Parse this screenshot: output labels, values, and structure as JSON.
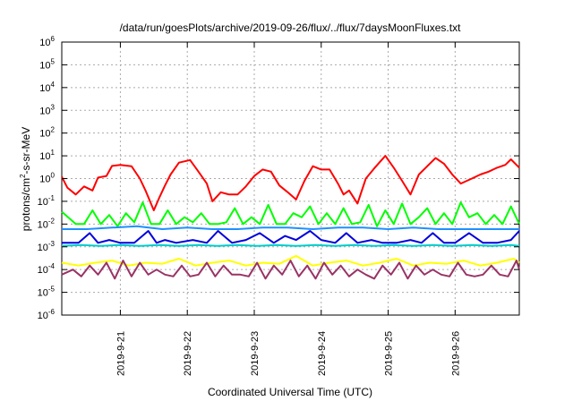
{
  "chart_data": {
    "type": "line",
    "title": "/data/run/goesPlots/archive/2019-09-26/flux/../flux/7daysMoonFluxes.txt",
    "xlabel": "Coordinated Universal Time (UTC)",
    "ylabel": "protons/cm²-s-sr-MeV",
    "ylabel_parts": {
      "pre": "protons/cm",
      "sup": "2",
      "post": "-s-sr-MeV"
    },
    "y_scale": "log",
    "ylim": [
      1e-06,
      1000000.0
    ],
    "y_ticks": [
      {
        "value": 1e-06,
        "base": "10",
        "exp": "-6"
      },
      {
        "value": 1e-05,
        "base": "10",
        "exp": "-5"
      },
      {
        "value": 0.0001,
        "base": "10",
        "exp": "-4"
      },
      {
        "value": 0.001,
        "base": "10",
        "exp": "-3"
      },
      {
        "value": 0.01,
        "base": "10",
        "exp": "-2"
      },
      {
        "value": 0.1,
        "base": "10",
        "exp": "-1"
      },
      {
        "value": 1.0,
        "base": "10",
        "exp": "0"
      },
      {
        "value": 10.0,
        "base": "10",
        "exp": "1"
      },
      {
        "value": 100.0,
        "base": "10",
        "exp": "2"
      },
      {
        "value": 1000.0,
        "base": "10",
        "exp": "3"
      },
      {
        "value": 10000.0,
        "base": "10",
        "exp": "4"
      },
      {
        "value": 100000.0,
        "base": "10",
        "exp": "5"
      },
      {
        "value": 1000000.0,
        "base": "10",
        "exp": "6"
      }
    ],
    "xlim": [
      "2019-09-20T03:00",
      "2019-09-26T23:00"
    ],
    "x_ticks": [
      {
        "label": "2019-9-21",
        "t": "2019-09-21T00:00"
      },
      {
        "label": "2019-9-22",
        "t": "2019-09-22T00:00"
      },
      {
        "label": "2019-9-23",
        "t": "2019-09-23T00:00"
      },
      {
        "label": "2019-9-24",
        "t": "2019-09-24T00:00"
      },
      {
        "label": "2019-9-25",
        "t": "2019-09-25T00:00"
      },
      {
        "label": "2019-9-26",
        "t": "2019-09-26T00:00"
      }
    ],
    "grid": true,
    "series": [
      {
        "color": "#ff0000",
        "x": [
          "2019-09-20T03:00",
          "2019-09-20T05:00",
          "2019-09-20T08:00",
          "2019-09-20T11:00",
          "2019-09-20T14:00",
          "2019-09-20T16:00",
          "2019-09-20T19:00",
          "2019-09-20T21:00",
          "2019-09-21T00:00",
          "2019-09-21T04:00",
          "2019-09-21T07:00",
          "2019-09-21T09:00",
          "2019-09-21T12:00",
          "2019-09-21T14:00",
          "2019-09-21T16:00",
          "2019-09-21T18:00",
          "2019-09-21T21:00",
          "2019-09-22T01:00",
          "2019-09-22T04:00",
          "2019-09-22T07:00",
          "2019-09-22T09:00",
          "2019-09-22T12:00",
          "2019-09-22T15:00",
          "2019-09-22T18:00",
          "2019-09-22T21:00",
          "2019-09-23T00:00",
          "2019-09-23T03:00",
          "2019-09-23T06:00",
          "2019-09-23T09:00",
          "2019-09-23T12:00",
          "2019-09-23T15:00",
          "2019-09-23T18:00",
          "2019-09-23T21:00",
          "2019-09-24T00:00",
          "2019-09-24T03:00",
          "2019-09-24T06:00",
          "2019-09-24T08:00",
          "2019-09-24T10:00",
          "2019-09-24T13:00",
          "2019-09-24T16:00",
          "2019-09-24T19:00",
          "2019-09-24T23:00",
          "2019-09-25T02:00",
          "2019-09-25T05:00",
          "2019-09-25T08:00",
          "2019-09-25T11:00",
          "2019-09-25T14:00",
          "2019-09-25T17:00",
          "2019-09-25T20:00",
          "2019-09-25T23:00",
          "2019-09-26T02:00",
          "2019-09-26T06:00",
          "2019-09-26T09:00",
          "2019-09-26T12:00",
          "2019-09-26T15:00",
          "2019-09-26T18:00",
          "2019-09-26T20:00",
          "2019-09-26T23:00"
        ],
        "values": [
          1.2,
          0.4,
          0.2,
          0.45,
          0.3,
          1.1,
          1.3,
          3.6,
          4.0,
          3.5,
          1.0,
          0.3,
          0.04,
          0.15,
          0.5,
          1.5,
          5.0,
          6.5,
          2.0,
          0.6,
          0.1,
          0.25,
          0.2,
          0.2,
          0.45,
          1.3,
          2.5,
          2.0,
          0.5,
          0.25,
          0.12,
          0.8,
          3.5,
          2.5,
          2.5,
          0.6,
          0.2,
          0.3,
          0.08,
          1.0,
          2.8,
          10.0,
          3.0,
          0.8,
          0.2,
          1.5,
          3.5,
          8.0,
          4.5,
          1.5,
          0.6,
          1.0,
          1.5,
          2.0,
          3.0,
          4.0,
          7.0,
          3.0
        ]
      },
      {
        "color": "#00ff00",
        "x": [
          "2019-09-20T03:00",
          "2019-09-20T08:00",
          "2019-09-20T11:00",
          "2019-09-20T14:00",
          "2019-09-20T17:00",
          "2019-09-20T20:00",
          "2019-09-20T23:00",
          "2019-09-21T02:00",
          "2019-09-21T05:00",
          "2019-09-21T08:00",
          "2019-09-21T11:00",
          "2019-09-21T14:00",
          "2019-09-21T17:00",
          "2019-09-21T20:00",
          "2019-09-21T23:00",
          "2019-09-22T02:00",
          "2019-09-22T05:00",
          "2019-09-22T08:00",
          "2019-09-22T11:00",
          "2019-09-22T14:00",
          "2019-09-22T17:00",
          "2019-09-22T20:00",
          "2019-09-22T23:00",
          "2019-09-23T02:00",
          "2019-09-23T05:00",
          "2019-09-23T08:00",
          "2019-09-23T11:00",
          "2019-09-23T14:00",
          "2019-09-23T17:00",
          "2019-09-23T20:00",
          "2019-09-23T23:00",
          "2019-09-24T02:00",
          "2019-09-24T05:00",
          "2019-09-24T08:00",
          "2019-09-24T11:00",
          "2019-09-24T14:00",
          "2019-09-24T17:00",
          "2019-09-24T20:00",
          "2019-09-24T23:00",
          "2019-09-25T02:00",
          "2019-09-25T05:00",
          "2019-09-25T08:00",
          "2019-09-25T11:00",
          "2019-09-25T14:00",
          "2019-09-25T17:00",
          "2019-09-25T20:00",
          "2019-09-25T23:00",
          "2019-09-26T02:00",
          "2019-09-26T05:00",
          "2019-09-26T08:00",
          "2019-09-26T11:00",
          "2019-09-26T14:00",
          "2019-09-26T17:00",
          "2019-09-26T20:00",
          "2019-09-26T23:00"
        ],
        "values": [
          0.035,
          0.01,
          0.01,
          0.04,
          0.01,
          0.025,
          0.008,
          0.03,
          0.012,
          0.09,
          0.01,
          0.01,
          0.04,
          0.01,
          0.02,
          0.012,
          0.03,
          0.01,
          0.01,
          0.012,
          0.05,
          0.01,
          0.02,
          0.01,
          0.07,
          0.01,
          0.01,
          0.03,
          0.02,
          0.06,
          0.01,
          0.03,
          0.01,
          0.05,
          0.01,
          0.012,
          0.07,
          0.008,
          0.04,
          0.01,
          0.08,
          0.01,
          0.02,
          0.05,
          0.01,
          0.03,
          0.01,
          0.09,
          0.02,
          0.03,
          0.01,
          0.025,
          0.01,
          0.06,
          0.01
        ]
      },
      {
        "color": "#1e90ff",
        "x": [
          "2019-09-20T03:00",
          "2019-09-20T12:00",
          "2019-09-20T21:00",
          "2019-09-21T06:00",
          "2019-09-21T15:00",
          "2019-09-22T00:00",
          "2019-09-22T09:00",
          "2019-09-22T18:00",
          "2019-09-23T03:00",
          "2019-09-23T12:00",
          "2019-09-23T21:00",
          "2019-09-24T06:00",
          "2019-09-24T15:00",
          "2019-09-25T00:00",
          "2019-09-25T09:00",
          "2019-09-25T18:00",
          "2019-09-26T03:00",
          "2019-09-26T12:00",
          "2019-09-26T21:00",
          "2019-09-26T23:00"
        ],
        "values": [
          0.006,
          0.006,
          0.007,
          0.008,
          0.006,
          0.007,
          0.006,
          0.006,
          0.007,
          0.007,
          0.006,
          0.007,
          0.007,
          0.006,
          0.007,
          0.006,
          0.006,
          0.006,
          0.006,
          0.006
        ]
      },
      {
        "color": "#0000dd",
        "x": [
          "2019-09-20T03:00",
          "2019-09-20T09:00",
          "2019-09-20T13:00",
          "2019-09-20T16:00",
          "2019-09-20T20:00",
          "2019-09-21T00:00",
          "2019-09-21T05:00",
          "2019-09-21T10:00",
          "2019-09-21T13:00",
          "2019-09-21T16:00",
          "2019-09-21T20:00",
          "2019-09-22T02:00",
          "2019-09-22T07:00",
          "2019-09-22T11:00",
          "2019-09-22T16:00",
          "2019-09-22T21:00",
          "2019-09-23T02:00",
          "2019-09-23T07:00",
          "2019-09-23T11:00",
          "2019-09-23T15:00",
          "2019-09-23T20:00",
          "2019-09-24T00:00",
          "2019-09-24T05:00",
          "2019-09-24T09:00",
          "2019-09-24T13:00",
          "2019-09-24T18:00",
          "2019-09-24T22:00",
          "2019-09-25T03:00",
          "2019-09-25T08:00",
          "2019-09-25T12:00",
          "2019-09-25T16:00",
          "2019-09-25T20:00",
          "2019-09-26T00:00",
          "2019-09-26T05:00",
          "2019-09-26T10:00",
          "2019-09-26T15:00",
          "2019-09-26T20:00",
          "2019-09-26T23:00"
        ],
        "values": [
          0.0015,
          0.0015,
          0.004,
          0.0015,
          0.002,
          0.0015,
          0.0015,
          0.005,
          0.0015,
          0.002,
          0.0015,
          0.002,
          0.0015,
          0.005,
          0.0015,
          0.002,
          0.004,
          0.0015,
          0.003,
          0.002,
          0.005,
          0.002,
          0.0015,
          0.004,
          0.0015,
          0.002,
          0.0015,
          0.0015,
          0.002,
          0.0015,
          0.004,
          0.0015,
          0.0015,
          0.004,
          0.0015,
          0.0015,
          0.002,
          0.005
        ]
      },
      {
        "color": "#00cccc",
        "x": [
          "2019-09-20T03:00",
          "2019-09-20T10:00",
          "2019-09-20T17:00",
          "2019-09-21T00:00",
          "2019-09-21T07:00",
          "2019-09-21T14:00",
          "2019-09-21T21:00",
          "2019-09-22T04:00",
          "2019-09-22T11:00",
          "2019-09-22T18:00",
          "2019-09-23T01:00",
          "2019-09-23T08:00",
          "2019-09-23T15:00",
          "2019-09-23T22:00",
          "2019-09-24T05:00",
          "2019-09-24T12:00",
          "2019-09-24T19:00",
          "2019-09-25T02:00",
          "2019-09-25T09:00",
          "2019-09-25T16:00",
          "2019-09-25T23:00",
          "2019-09-26T06:00",
          "2019-09-26T13:00",
          "2019-09-26T20:00",
          "2019-09-26T23:00"
        ],
        "values": [
          0.0011,
          0.0012,
          0.0011,
          0.0012,
          0.0011,
          0.0012,
          0.0011,
          0.0012,
          0.0011,
          0.0012,
          0.0011,
          0.0012,
          0.0011,
          0.0012,
          0.0011,
          0.0012,
          0.0011,
          0.0012,
          0.0011,
          0.0012,
          0.0011,
          0.0012,
          0.0011,
          0.0012,
          0.0011
        ]
      },
      {
        "color": "#ffff00",
        "x": [
          "2019-09-20T03:00",
          "2019-09-20T09:00",
          "2019-09-20T15:00",
          "2019-09-20T21:00",
          "2019-09-21T03:00",
          "2019-09-21T09:00",
          "2019-09-21T15:00",
          "2019-09-21T21:00",
          "2019-09-22T03:00",
          "2019-09-22T09:00",
          "2019-09-22T15:00",
          "2019-09-22T21:00",
          "2019-09-23T03:00",
          "2019-09-23T09:00",
          "2019-09-23T15:00",
          "2019-09-23T21:00",
          "2019-09-24T03:00",
          "2019-09-24T09:00",
          "2019-09-24T15:00",
          "2019-09-24T21:00",
          "2019-09-25T03:00",
          "2019-09-25T09:00",
          "2019-09-25T15:00",
          "2019-09-25T21:00",
          "2019-09-26T03:00",
          "2019-09-26T09:00",
          "2019-09-26T15:00",
          "2019-09-26T21:00",
          "2019-09-26T23:00"
        ],
        "values": [
          0.0002,
          0.00015,
          0.0002,
          0.00025,
          0.00015,
          0.0002,
          0.00018,
          0.0003,
          0.00015,
          0.0002,
          0.00025,
          0.00015,
          0.0002,
          0.00018,
          0.0004,
          0.00015,
          0.0002,
          0.00025,
          0.00015,
          0.0002,
          0.0003,
          0.00015,
          0.0002,
          0.00018,
          0.00025,
          0.00015,
          0.0002,
          0.0003,
          0.0002
        ]
      },
      {
        "color": "#993366",
        "x": [
          "2019-09-20T03:00",
          "2019-09-20T07:00",
          "2019-09-20T10:00",
          "2019-09-20T13:00",
          "2019-09-20T16:00",
          "2019-09-20T19:00",
          "2019-09-20T22:00",
          "2019-09-21T01:00",
          "2019-09-21T04:00",
          "2019-09-21T07:00",
          "2019-09-21T10:00",
          "2019-09-21T13:00",
          "2019-09-21T16:00",
          "2019-09-21T19:00",
          "2019-09-21T22:00",
          "2019-09-22T01:00",
          "2019-09-22T04:00",
          "2019-09-22T07:00",
          "2019-09-22T10:00",
          "2019-09-22T13:00",
          "2019-09-22T16:00",
          "2019-09-22T19:00",
          "2019-09-22T22:00",
          "2019-09-23T01:00",
          "2019-09-23T04:00",
          "2019-09-23T07:00",
          "2019-09-23T10:00",
          "2019-09-23T13:00",
          "2019-09-23T16:00",
          "2019-09-23T19:00",
          "2019-09-23T22:00",
          "2019-09-24T01:00",
          "2019-09-24T04:00",
          "2019-09-24T07:00",
          "2019-09-24T10:00",
          "2019-09-24T13:00",
          "2019-09-24T16:00",
          "2019-09-24T19:00",
          "2019-09-24T22:00",
          "2019-09-25T01:00",
          "2019-09-25T04:00",
          "2019-09-25T07:00",
          "2019-09-25T10:00",
          "2019-09-25T13:00",
          "2019-09-25T16:00",
          "2019-09-25T19:00",
          "2019-09-25T22:00",
          "2019-09-26T01:00",
          "2019-09-26T04:00",
          "2019-09-26T07:00",
          "2019-09-26T10:00",
          "2019-09-26T13:00",
          "2019-09-26T16:00",
          "2019-09-26T19:00",
          "2019-09-26T22:00",
          "2019-09-26T23:00"
        ],
        "values": [
          6e-05,
          0.0001,
          5e-05,
          0.00015,
          6e-05,
          0.0002,
          4e-05,
          0.00025,
          5e-05,
          0.0002,
          6e-05,
          0.0001,
          6e-05,
          5e-05,
          0.00015,
          5e-05,
          6e-05,
          0.0002,
          5e-05,
          0.00015,
          6e-05,
          6e-05,
          5e-05,
          0.0002,
          4e-05,
          0.00015,
          6e-05,
          0.00025,
          5e-05,
          0.00015,
          4e-05,
          0.0002,
          6e-05,
          0.00015,
          5e-05,
          0.0001,
          6e-05,
          4e-05,
          0.00015,
          6e-05,
          0.0002,
          4e-05,
          0.00015,
          6e-05,
          0.0001,
          6e-05,
          5e-05,
          0.0002,
          6e-05,
          5e-05,
          6e-05,
          0.00015,
          6e-05,
          5e-05,
          0.00025,
          0.0001
        ]
      }
    ]
  }
}
